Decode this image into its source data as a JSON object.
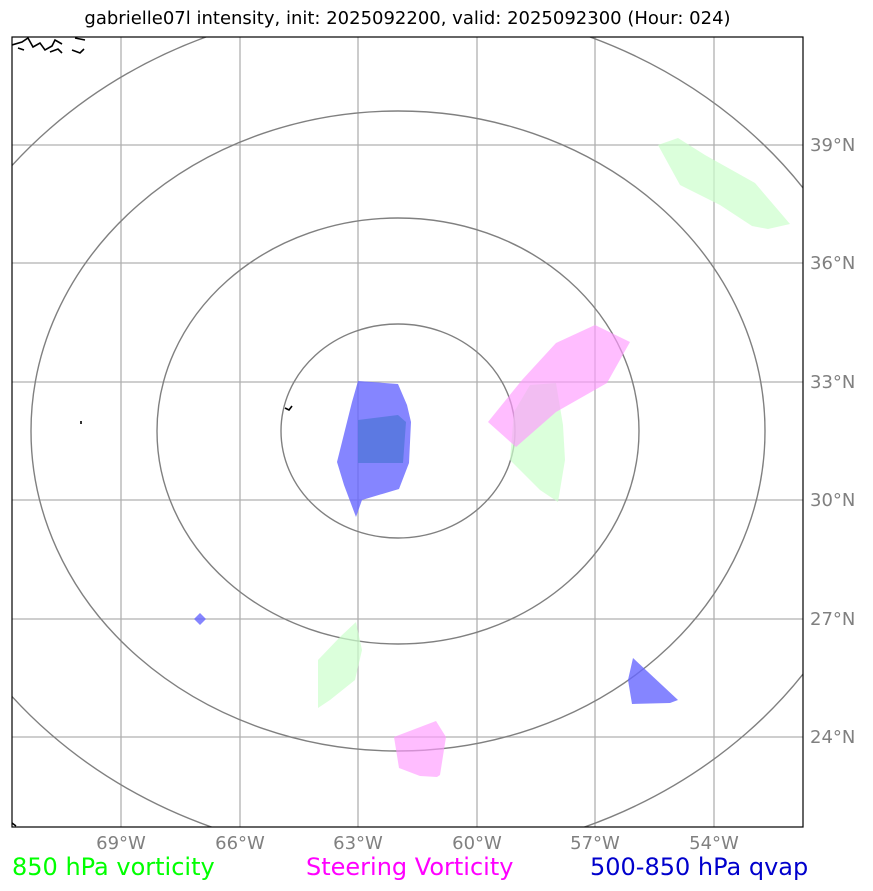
{
  "title": "gabrielle07l intensity, init: 2025092200, valid: 2025092300 (Hour: 024)",
  "map": {
    "lon_ticks": [
      "69°W",
      "66°W",
      "63°W",
      "60°W",
      "57°W",
      "54°W"
    ],
    "lat_ticks": [
      "39°N",
      "36°N",
      "33°N",
      "30°N",
      "27°N",
      "24°N"
    ],
    "layer_colors": {
      "vorticity_850": "#ccffcc",
      "steering_vorticity": "#ff99ff",
      "qvap_500_850": "#6666ff",
      "range_rings": "#808080",
      "gridlines": "#b0b0b0",
      "coastline": "#000000"
    }
  },
  "legend": {
    "vorticity_850": {
      "label": "850 hPa vorticity",
      "color": "#00ff00"
    },
    "steering_vorticity": {
      "label": "Steering Vorticity",
      "color": "#ff00ff"
    },
    "qvap": {
      "label": "500-850 hPa qvap",
      "color": "#0000cc"
    }
  }
}
